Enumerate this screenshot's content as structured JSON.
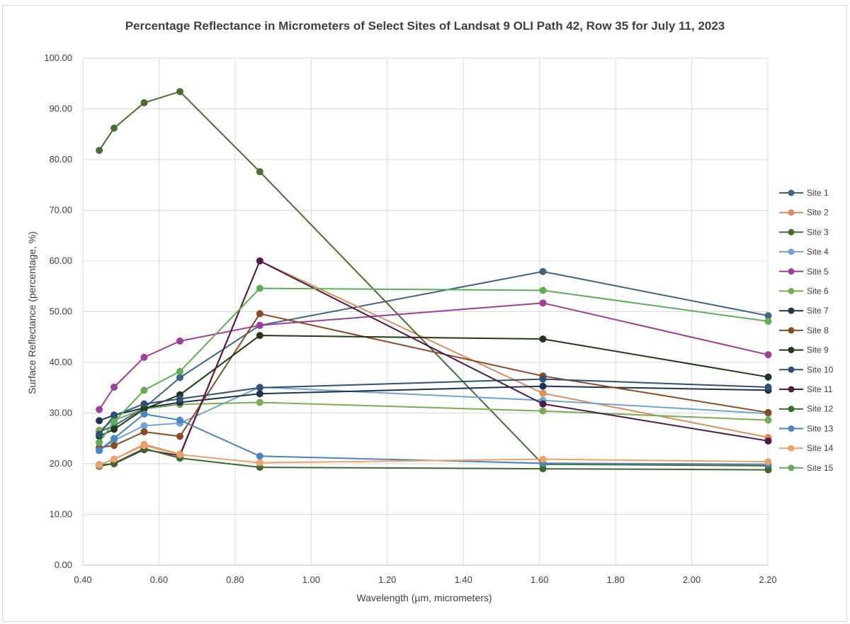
{
  "chart_data": {
    "type": "line",
    "title": "Percentage Reflectance in Micrometers of Select Sites of Landsat 9 OLI Path 42, Row 35 for July 11, 2023",
    "xlabel": "Wavelength (µm, micrometers)",
    "ylabel": "Surface Reflectance (percentage, %)",
    "xlim": [
      0.4,
      2.2
    ],
    "ylim": [
      0,
      100
    ],
    "grid": true,
    "legend_position": "right",
    "x_ticks": [
      "0.40",
      "0.60",
      "0.80",
      "1.00",
      "1.20",
      "1.40",
      "1.60",
      "1.80",
      "2.00",
      "2.20"
    ],
    "y_ticks": [
      "0.00",
      "10.00",
      "20.00",
      "30.00",
      "40.00",
      "50.00",
      "60.00",
      "70.00",
      "80.00",
      "90.00",
      "100.00"
    ],
    "x": [
      0.443,
      0.482,
      0.561,
      0.655,
      0.865,
      1.609,
      2.201
    ],
    "series": [
      {
        "name": "Site 1",
        "color": "#3f6385",
        "values": [
          26.3,
          27.5,
          31.0,
          37.0,
          47.3,
          57.9,
          49.2
        ]
      },
      {
        "name": "Site 2",
        "color": "#dd8c5a",
        "values": [
          19.8,
          20.9,
          23.8,
          21.9,
          60.0,
          33.9,
          25.2
        ]
      },
      {
        "name": "Site 3",
        "color": "#4a6d34",
        "values": [
          81.8,
          86.2,
          91.2,
          93.4,
          77.6,
          19.9,
          19.6
        ]
      },
      {
        "name": "Site 4",
        "color": "#6fa3d6",
        "values": [
          22.6,
          24.6,
          27.5,
          28.0,
          35.1,
          32.5,
          29.9
        ]
      },
      {
        "name": "Site 5",
        "color": "#9c3f9c",
        "values": [
          30.7,
          35.1,
          41.0,
          44.2,
          47.3,
          51.7,
          41.5
        ]
      },
      {
        "name": "Site 6",
        "color": "#79ad53",
        "values": [
          26.6,
          28.6,
          30.8,
          31.7,
          32.1,
          30.4,
          28.6
        ]
      },
      {
        "name": "Site 7",
        "color": "#1e3350",
        "values": [
          28.5,
          29.6,
          31.0,
          32.1,
          33.8,
          35.3,
          34.5
        ]
      },
      {
        "name": "Site 8",
        "color": "#8a4b25",
        "values": [
          23.2,
          23.6,
          26.3,
          25.4,
          49.6,
          37.3,
          30.1
        ]
      },
      {
        "name": "Site 9",
        "color": "#1f3a14",
        "values": [
          25.4,
          26.8,
          30.8,
          33.6,
          45.3,
          44.6,
          37.1
        ]
      },
      {
        "name": "Site 10",
        "color": "#2f5173",
        "values": [
          25.8,
          29.5,
          31.8,
          32.8,
          35.0,
          36.7,
          35.1
        ]
      },
      {
        "name": "Site 11",
        "color": "#4d1a4a",
        "values": [
          19.7,
          20.0,
          22.8,
          21.6,
          60.0,
          31.8,
          24.5
        ]
      },
      {
        "name": "Site 12",
        "color": "#3b6b2c",
        "values": [
          19.5,
          20.1,
          23.0,
          21.1,
          19.3,
          19.0,
          18.8
        ]
      },
      {
        "name": "Site 13",
        "color": "#4a85bd",
        "values": [
          22.6,
          25.0,
          29.8,
          28.6,
          21.5,
          20.1,
          19.9
        ]
      },
      {
        "name": "Site 14",
        "color": "#f0a06a",
        "values": [
          19.7,
          20.9,
          23.6,
          21.8,
          20.2,
          20.9,
          20.4
        ]
      },
      {
        "name": "Site 15",
        "color": "#5fad56",
        "values": [
          24.2,
          28.3,
          34.5,
          38.2,
          54.6,
          54.2,
          48.1
        ]
      }
    ]
  }
}
